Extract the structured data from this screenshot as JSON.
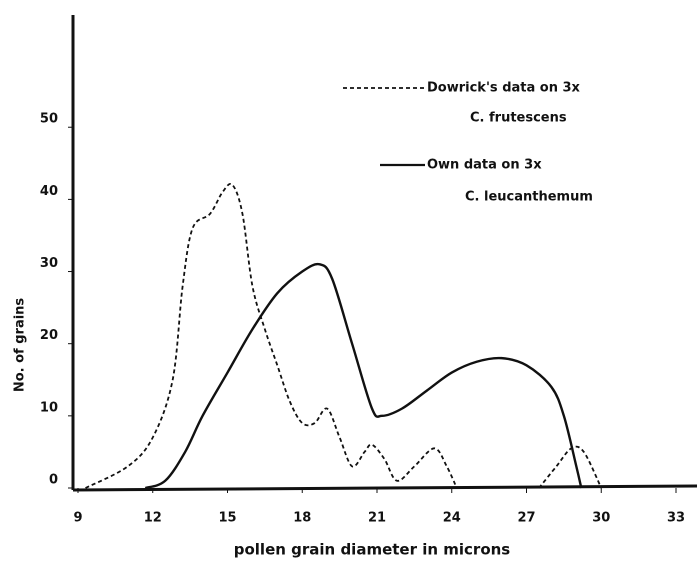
{
  "chart_data": {
    "type": "line",
    "xlabel": "pollen grain diameter in microns",
    "ylabel": "No. of grains",
    "xlim": [
      9,
      33
    ],
    "xticks": [
      9,
      12,
      15,
      18,
      21,
      24,
      27,
      30,
      33
    ],
    "ylim": [
      0,
      65
    ],
    "yticks": [
      0,
      10,
      20,
      30,
      40,
      50
    ],
    "series": [
      {
        "name": [
          "Dowrick's data on 3x",
          "C. frutescens"
        ],
        "color": "#111111",
        "dash": true,
        "x": [
          9.3,
          11,
          12,
          12.8,
          13.2,
          13.6,
          14.3,
          14.8,
          15.2,
          15.6,
          16,
          16.5,
          17,
          17.5,
          18,
          18.5,
          19,
          19.5,
          20,
          20.5,
          20.8,
          21.3,
          21.8,
          22.5,
          23.3,
          23.8,
          24.2,
          null,
          27.5,
          28.2,
          28.8,
          29.3,
          30
        ],
        "values": [
          0,
          3,
          7,
          15,
          28,
          36,
          38,
          41,
          42,
          38,
          28,
          22,
          17,
          12,
          9,
          9,
          11,
          7,
          3,
          5,
          6,
          4,
          1,
          3,
          5.5,
          3,
          0,
          null,
          0,
          3,
          5.5,
          5,
          0
        ]
      },
      {
        "name": [
          "Own data on 3x",
          "C. leucanthemum"
        ],
        "color": "#111111",
        "dash": false,
        "x": [
          11.7,
          12.5,
          13.3,
          14,
          15,
          16,
          17,
          18,
          18.7,
          19.2,
          20,
          20.8,
          21.2,
          22,
          23,
          24,
          25,
          26,
          27,
          28,
          28.5,
          29,
          29.2
        ],
        "values": [
          0,
          1,
          5,
          10,
          16,
          22,
          27,
          30,
          31,
          29,
          20,
          11,
          10,
          11,
          13.5,
          16,
          17.5,
          18,
          17,
          14,
          10,
          3,
          0
        ]
      }
    ]
  }
}
